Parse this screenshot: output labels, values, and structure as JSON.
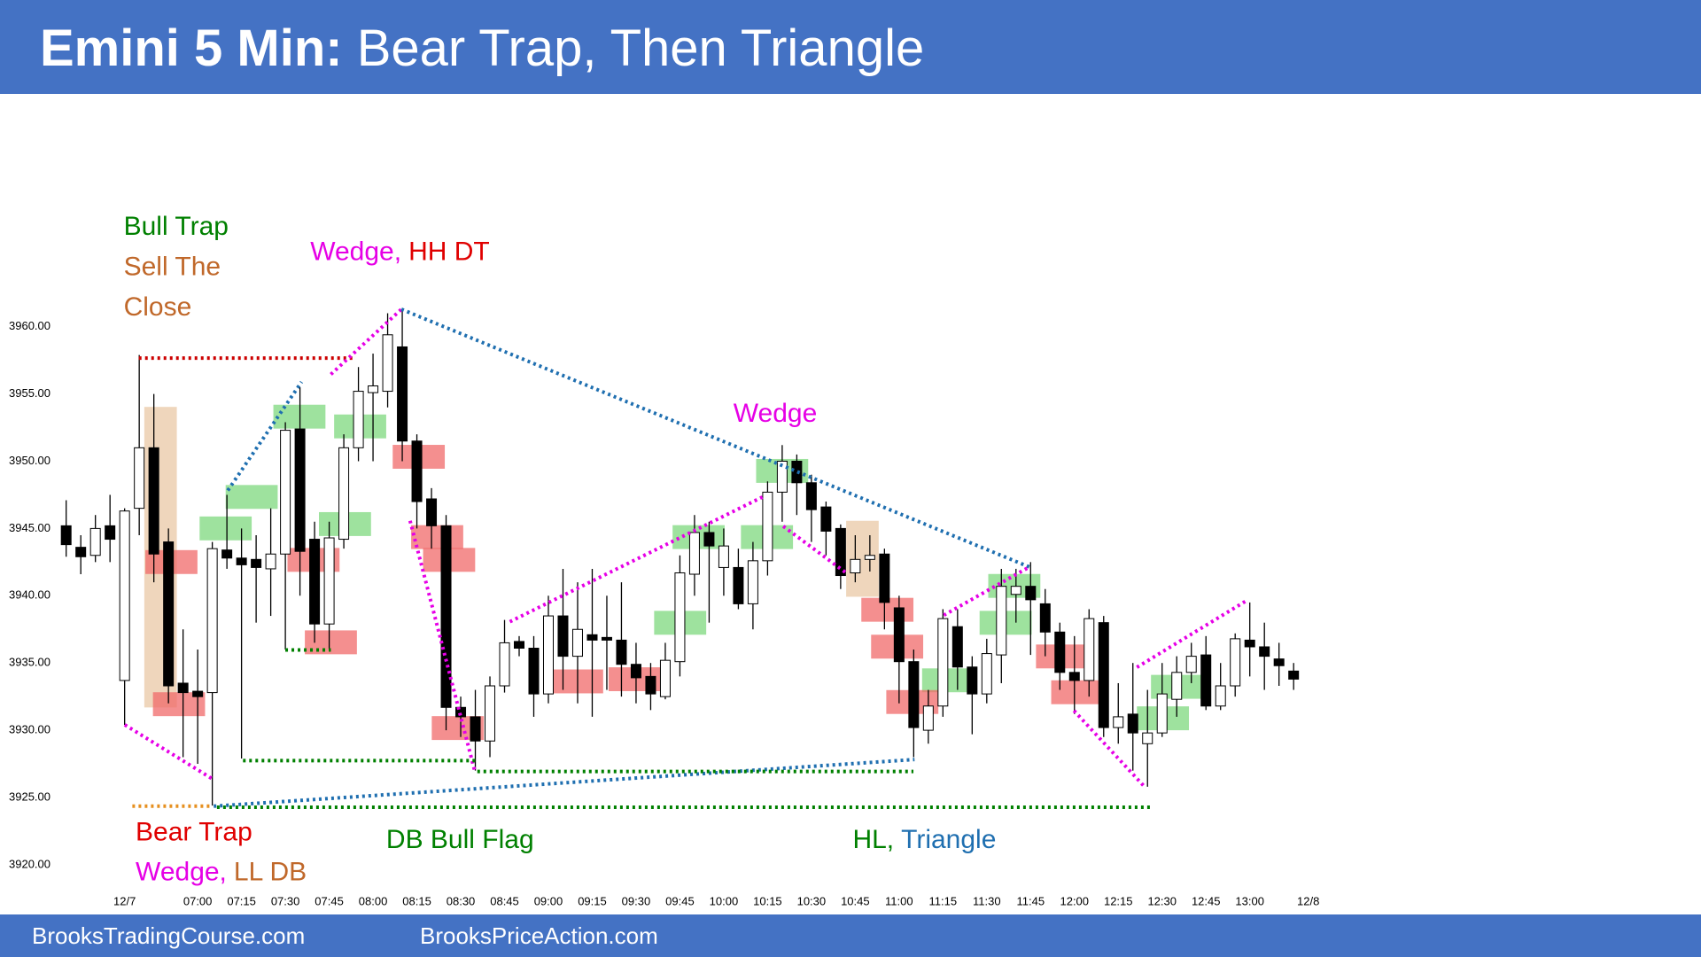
{
  "chart_data": {
    "type": "candlestick",
    "title": "Emini 5 Min:",
    "subtitle": "Bear Trap, Then Triangle",
    "footer": [
      "BrooksTradingCourse.com",
      "BrooksPriceAction.com"
    ],
    "categories": [
      null,
      null,
      null,
      null,
      "12/7",
      null,
      null,
      null,
      null,
      "07:00",
      null,
      null,
      "07:15",
      null,
      null,
      "07:30",
      null,
      null,
      "07:45",
      null,
      null,
      "08:00",
      null,
      null,
      "08:15",
      null,
      null,
      "08:30",
      null,
      null,
      "08:45",
      null,
      null,
      "09:00",
      null,
      null,
      "09:15",
      null,
      null,
      "09:30",
      null,
      null,
      "09:45",
      null,
      null,
      "10:00",
      null,
      null,
      "10:15",
      null,
      null,
      "10:30",
      null,
      null,
      "10:45",
      null,
      null,
      "11:00",
      null,
      null,
      "11:15",
      null,
      null,
      "11:30",
      null,
      null,
      "11:45",
      null,
      null,
      "12:00",
      null,
      null,
      "12:15",
      null,
      null,
      "12:30",
      null,
      null,
      "12:45",
      null,
      null,
      "13:00",
      null,
      null,
      null,
      "12/8"
    ],
    "open": [
      3945.2,
      3943.6,
      3943,
      3945.2,
      3933.7,
      3946.5,
      3951,
      3944,
      3933.5,
      3932.9,
      3932.8,
      3943.4,
      3942.8,
      3942.7,
      3942,
      3943.1,
      3952.4,
      3944.2,
      3937.9,
      3944.2,
      3951,
      3955.1,
      3955.2,
      3958.5,
      3951.5,
      3947.2,
      3945.2,
      3931.7,
      3931,
      3929.2,
      3933.3,
      3936.6,
      3936.1,
      3932.7,
      3938.5,
      3935.5,
      3937.1,
      3936.9,
      3936.7,
      3934.9,
      3934,
      3932.5,
      3935.1,
      3941.6,
      3944.7,
      3942.1,
      3942.1,
      3939.4,
      3942.6,
      3947.7,
      3950,
      3948.4,
      3946.6,
      3945,
      3941.7,
      3942.7,
      3943.1,
      3939.1,
      3935.1,
      3930,
      3931.8,
      3937.7,
      3934.7,
      3932.7,
      3935.6,
      3940.1,
      3940.7,
      3939.4,
      3937.3,
      3934.3,
      3933.7,
      3938,
      3930.2,
      3931.2,
      3929,
      3929.8,
      3932.3,
      3934.3,
      3935.6,
      3931.8,
      3933.3,
      3936.7,
      3936.2,
      3935.3,
      3934.4,
      null
    ],
    "high": [
      3947.1,
      3944.5,
      3946,
      3947.5,
      3946.5,
      3957.9,
      3955,
      3945,
      3937.5,
      3936,
      3944,
      3947.5,
      3945,
      3944.5,
      3946.5,
      3952.9,
      3955.5,
      3945.5,
      3945.5,
      3952,
      3957,
      3958,
      3961,
      3961.2,
      3952,
      3948,
      3946,
      3932.5,
      3933,
      3934,
      3938.2,
      3937,
      3937,
      3940,
      3942,
      3941,
      3942,
      3940,
      3941,
      3936.5,
      3935,
      3936.5,
      3943,
      3946,
      3945.5,
      3945,
      3943.5,
      3944,
      3948.5,
      3951.2,
      3950.5,
      3949,
      3947,
      3945.3,
      3944.5,
      3944.5,
      3943.5,
      3940,
      3936,
      3933,
      3939,
      3939,
      3935.5,
      3936.8,
      3942,
      3942,
      3942.5,
      3940.5,
      3938,
      3937,
      3939,
      3938.5,
      3933.5,
      3935,
      3933,
      3935,
      3935.5,
      3936.5,
      3937,
      3935,
      3937.2,
      3939.5,
      3938,
      3936.5,
      3935,
      null
    ],
    "low": [
      3942.9,
      3941.6,
      3942.5,
      3942.5,
      3930.4,
      3944.5,
      3941,
      3932,
      3928,
      3927.5,
      3924.4,
      3942,
      3927.9,
      3938,
      3938.5,
      3936,
      3940,
      3936.5,
      3936,
      3943.5,
      3950,
      3950,
      3954,
      3950,
      3945,
      3943.5,
      3930,
      3929.5,
      3927,
      3928,
      3932.8,
      3935.5,
      3931,
      3932,
      3933,
      3932,
      3931,
      3933,
      3932.5,
      3932,
      3931.5,
      3932.3,
      3934,
      3940,
      3938,
      3940,
      3939,
      3937.5,
      3941.5,
      3945.5,
      3946,
      3944,
      3943,
      3940.5,
      3941,
      3941.8,
      3937.5,
      3932,
      3928,
      3929,
      3931,
      3933,
      3929.7,
      3932,
      3933.5,
      3938,
      3935.6,
      3935.5,
      3933,
      3931.2,
      3932.5,
      3929.5,
      3929,
      3927,
      3925.8,
      3929.5,
      3931,
      3933.5,
      3931.5,
      3931.5,
      3932.5,
      3934,
      3933,
      3933.3,
      3933,
      null
    ],
    "close": [
      3943.8,
      3942.9,
      3945,
      3944.2,
      3946.3,
      3951,
      3943.1,
      3933.3,
      3932.8,
      3932.5,
      3943.5,
      3942.8,
      3942.3,
      3942.1,
      3943.1,
      3952.3,
      3943.3,
      3937.9,
      3944.3,
      3951,
      3955.2,
      3955.6,
      3959.4,
      3951.5,
      3947,
      3945.2,
      3931.7,
      3931,
      3929.2,
      3933.3,
      3936.5,
      3936.1,
      3932.7,
      3938.5,
      3935.5,
      3937.5,
      3936.7,
      3936.7,
      3934.9,
      3933.9,
      3932.7,
      3935.2,
      3941.7,
      3944.7,
      3943.7,
      3943.7,
      3939.4,
      3942.6,
      3947.7,
      3950,
      3948.4,
      3946.4,
      3944.8,
      3941.5,
      3942.7,
      3943,
      3939.5,
      3935.1,
      3930.2,
      3931.8,
      3938.3,
      3934.7,
      3932.7,
      3935.7,
      3940.7,
      3940.7,
      3939.7,
      3937.3,
      3934.3,
      3933.7,
      3938.3,
      3930.2,
      3931,
      3929.8,
      3929.8,
      3932.7,
      3934.3,
      3935.5,
      3931.8,
      3933.3,
      3936.8,
      3936.2,
      3935.5,
      3934.8,
      3933.8,
      null
    ],
    "up_color": "#ffffff",
    "down_color": "#000000",
    "ylim": [
      3918,
      3975
    ],
    "yticks": [
      {
        "value": 3920,
        "label": "3920.00"
      },
      {
        "value": 3925,
        "label": "3925.00"
      },
      {
        "value": 3930,
        "label": "3930.00"
      },
      {
        "value": 3935,
        "label": "3935.00"
      },
      {
        "value": 3940,
        "label": "3940.00"
      },
      {
        "value": 3945,
        "label": "3945.00"
      },
      {
        "value": 3950,
        "label": "3950.00"
      },
      {
        "value": 3955,
        "label": "3955.00"
      },
      {
        "value": 3960,
        "label": "3960.00"
      }
    ],
    "grid": false,
    "annotations": [
      {
        "parts": [
          {
            "text": "Bull Trap",
            "color": "#008000"
          }
        ]
      },
      {
        "parts": [
          {
            "text": "Sell The",
            "color": "#c0682a"
          }
        ]
      },
      {
        "parts": [
          {
            "text": "Close",
            "color": "#c0682a"
          }
        ]
      },
      {
        "parts": [
          {
            "text": "Wedge,",
            "color": "#e600e6"
          },
          {
            "text": "HH DT",
            "color": "#e00000"
          }
        ]
      },
      {
        "parts": [
          {
            "text": "Wedge",
            "color": "#e600e6"
          }
        ]
      },
      {
        "parts": [
          {
            "text": "Bear Trap",
            "color": "#e00000"
          }
        ]
      },
      {
        "parts": [
          {
            "text": "Wedge,",
            "color": "#e600e6"
          },
          {
            "text": "LL DB",
            "color": "#c0682a"
          }
        ]
      },
      {
        "parts": [
          {
            "text": "DB Bull Flag",
            "color": "#008000"
          }
        ]
      },
      {
        "parts": [
          {
            "text": "HL,",
            "color": "#008000"
          },
          {
            "text": "Triangle",
            "color": "#1f6fb0"
          }
        ]
      }
    ]
  }
}
